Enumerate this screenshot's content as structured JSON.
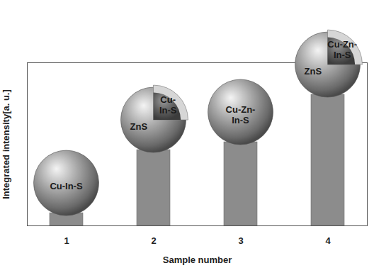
{
  "chart_data": {
    "type": "bar",
    "xlabel": "Sample number",
    "ylabel": "Integrated intensity[a. u.]",
    "categories": [
      "1",
      "2",
      "3",
      "4"
    ],
    "values": [
      7.8,
      46.5,
      51.3,
      80.4
    ],
    "ylim": [
      0,
      100
    ],
    "color": "#8c8c8c",
    "tick_labels": "x",
    "annotations": [
      {
        "category": "1",
        "core": "Cu-In-S"
      },
      {
        "category": "2",
        "shell": "ZnS",
        "core": "Cu-\nIn-S"
      },
      {
        "category": "3",
        "core": "Cu-Zn-\nIn-S"
      },
      {
        "category": "4",
        "shell": "ZnS",
        "core": "Cu-Zn-\nIn-S"
      }
    ]
  }
}
